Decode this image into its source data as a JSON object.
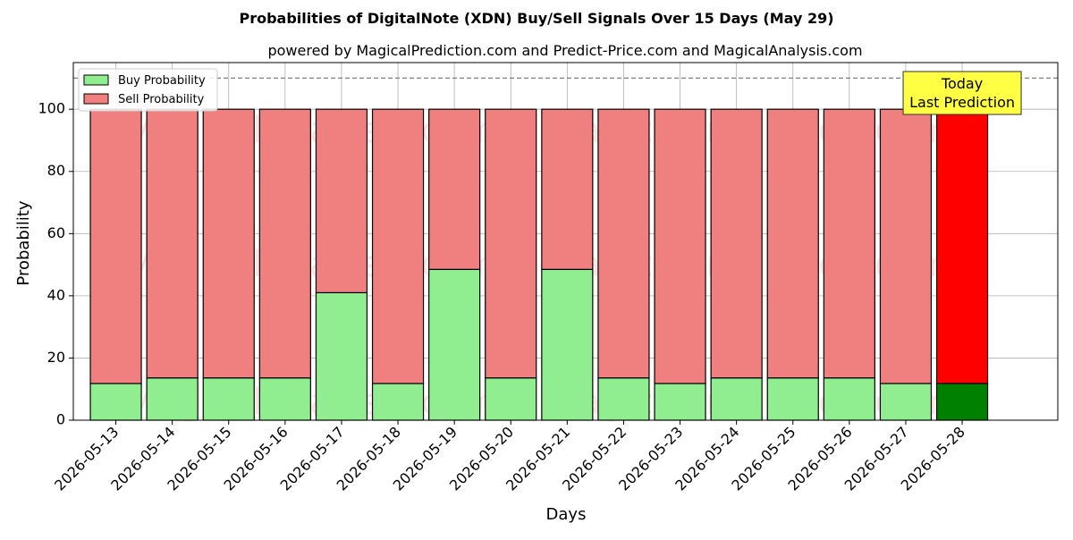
{
  "chart_data": {
    "type": "bar",
    "stacked": true,
    "title": "Probabilities of DigitalNote (XDN) Buy/Sell Signals Over 15 Days (May 29)",
    "subtitle": "powered by MagicalPrediction.com and Predict-Price.com and MagicalAnalysis.com",
    "xlabel": "Days",
    "ylabel": "Probability",
    "ylim": [
      0,
      115
    ],
    "yticks": [
      0,
      20,
      40,
      60,
      80,
      100
    ],
    "grid": true,
    "legend_position": "top-left",
    "categories": [
      "2026-05-13",
      "2026-05-14",
      "2026-05-15",
      "2026-05-16",
      "2026-05-17",
      "2026-05-18",
      "2026-05-19",
      "2026-05-20",
      "2026-05-21",
      "2026-05-22",
      "2026-05-23",
      "2026-05-24",
      "2026-05-25",
      "2026-05-26",
      "2026-05-27",
      "2026-05-28"
    ],
    "series": [
      {
        "name": "Buy Probability",
        "color": "#90ee90",
        "highlight_color": "#008000",
        "values": [
          11.8,
          13.6,
          13.6,
          13.6,
          41.0,
          11.8,
          48.5,
          13.6,
          48.5,
          13.6,
          11.8,
          13.6,
          13.6,
          13.6,
          11.8,
          11.8
        ]
      },
      {
        "name": "Sell Probability",
        "color": "#f08080",
        "highlight_color": "#ff0000",
        "values": [
          88.2,
          86.4,
          86.4,
          86.4,
          59.0,
          88.2,
          51.5,
          86.4,
          51.5,
          86.4,
          88.2,
          86.4,
          86.4,
          86.4,
          88.2,
          88.2
        ]
      }
    ],
    "reference_line": {
      "y": 110,
      "style": "dashed",
      "color": "#808080"
    },
    "annotation": {
      "line1": "Today",
      "line2": "Last Prediction",
      "target_category": "2026-05-28",
      "background": "#ffff44"
    },
    "watermarks": [
      "MagicalAnalysis.com",
      "MagicalPrediction.com"
    ]
  }
}
